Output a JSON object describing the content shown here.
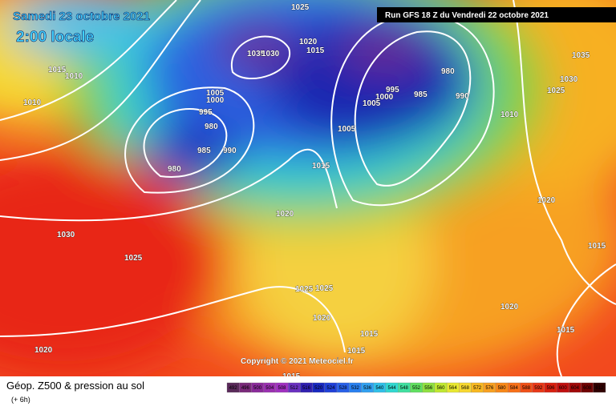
{
  "header": {
    "date": "Samedi 23 octobre 2021",
    "time": "2:00 locale",
    "run": "Run GFS 18 Z du Vendredi 22 octobre 2021"
  },
  "copyright": "Copyright © 2021 Meteociel.fr",
  "footer": {
    "title": "Géop. Z500 & pression au sol",
    "lead": "(+ 6h)"
  },
  "isobar_labels": [
    1025,
    1015,
    1010,
    1010,
    1020,
    1015,
    1035,
    1030,
    1005,
    1000,
    995,
    980,
    985,
    990,
    980,
    1015,
    1020,
    1005,
    1005,
    1000,
    995,
    985,
    980,
    990,
    1035,
    1030,
    1025,
    1010,
    1020,
    1030,
    1025,
    1015,
    1025,
    1025,
    1020,
    1020,
    1015,
    1015,
    1015,
    1020,
    1015
  ],
  "color_scale": {
    "levels": [
      492,
      496,
      500,
      504,
      508,
      512,
      516,
      520,
      524,
      528,
      532,
      536,
      540,
      544,
      548,
      552,
      556,
      560,
      564,
      568,
      572,
      576,
      580,
      584,
      588,
      592,
      596,
      600,
      604,
      608,
      612
    ]
  }
}
